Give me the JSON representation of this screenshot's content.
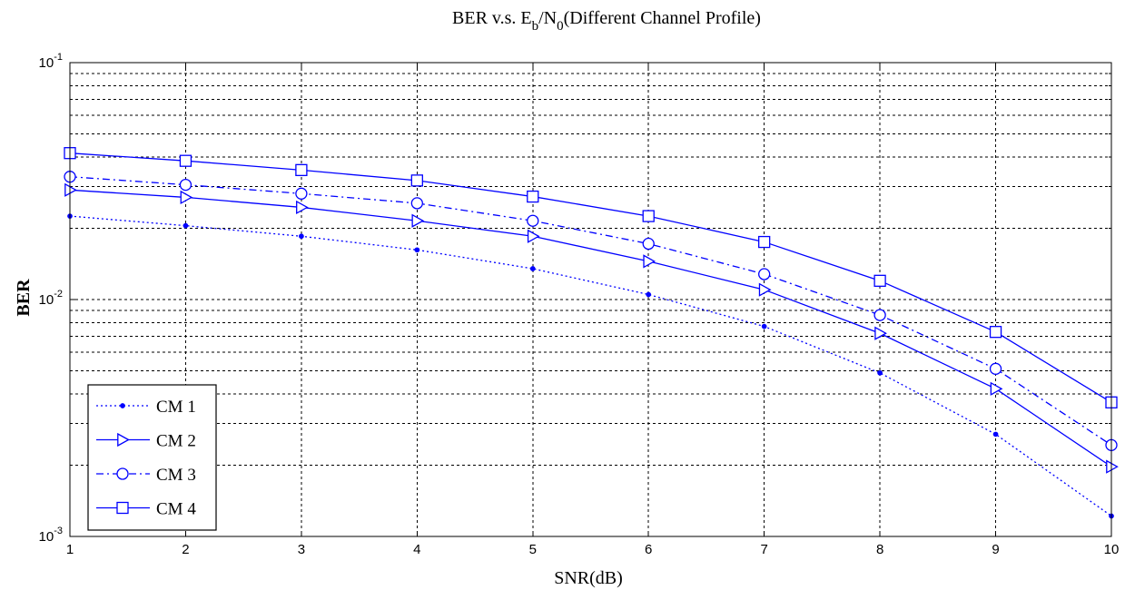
{
  "chart_data": {
    "type": "line",
    "title": "BER v.s. E_b/N_0(Different Channel Profile)",
    "title_parts": {
      "prefix": "BER v.s. E",
      "sub1": "b",
      "mid": "/N",
      "sub2": "0",
      "suffix": "(Different Channel Profile)"
    },
    "xlabel": "SNR(dB)",
    "ylabel": "BER",
    "x": [
      1,
      2,
      3,
      4,
      5,
      6,
      7,
      8,
      9,
      10
    ],
    "x_ticks": [
      1,
      2,
      3,
      4,
      5,
      6,
      7,
      8,
      9,
      10
    ],
    "xlim": [
      1,
      10
    ],
    "ylim": [
      0.001,
      0.1
    ],
    "yscale": "log",
    "y_ticks": [
      {
        "value": 0.1,
        "base": "10",
        "exp": "-1"
      },
      {
        "value": 0.01,
        "base": "10",
        "exp": "-2"
      },
      {
        "value": 0.001,
        "base": "10",
        "exp": "-3"
      }
    ],
    "grid": true,
    "legend_position": "bottom-left",
    "line_color": "#0000ff",
    "series": [
      {
        "name": "CM 1",
        "dash": "dotted",
        "marker": "point",
        "values": [
          0.0225,
          0.0205,
          0.0185,
          0.0162,
          0.0135,
          0.0105,
          0.0077,
          0.0049,
          0.0027,
          0.00122
        ]
      },
      {
        "name": "CM 2",
        "dash": "solid",
        "marker": "triangle-right",
        "values": [
          0.029,
          0.027,
          0.0245,
          0.0215,
          0.0185,
          0.0145,
          0.011,
          0.0072,
          0.0042,
          0.00197
        ]
      },
      {
        "name": "CM 3",
        "dash": "dashdot",
        "marker": "circle",
        "values": [
          0.033,
          0.0305,
          0.028,
          0.0255,
          0.0215,
          0.0172,
          0.0128,
          0.0086,
          0.0051,
          0.00243
        ]
      },
      {
        "name": "CM 4",
        "dash": "solid",
        "marker": "square",
        "values": [
          0.0415,
          0.0385,
          0.0352,
          0.0318,
          0.0272,
          0.0225,
          0.0175,
          0.012,
          0.0073,
          0.00368
        ]
      }
    ]
  }
}
